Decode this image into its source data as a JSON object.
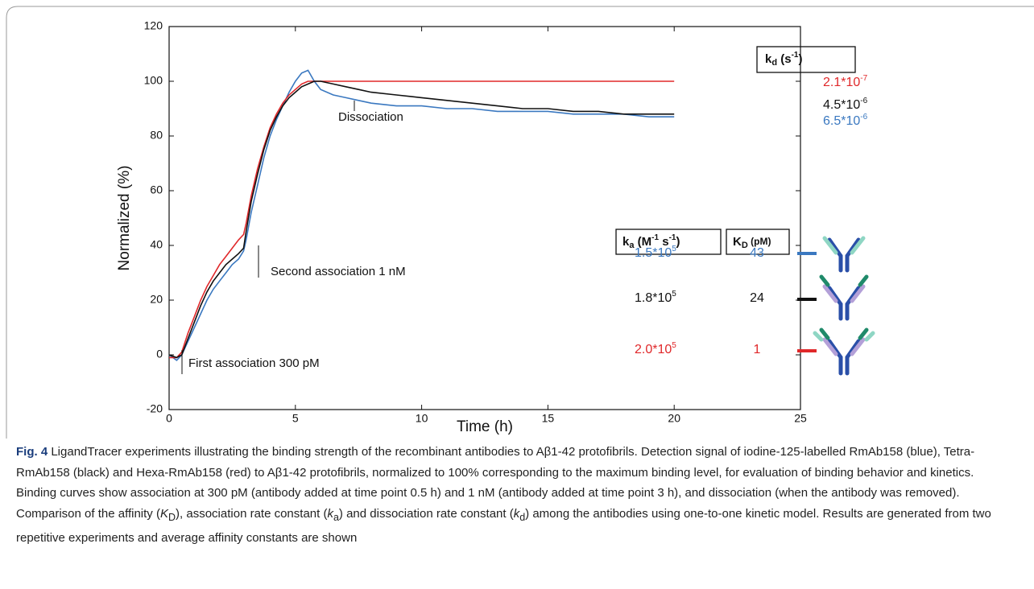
{
  "chart_data": {
    "type": "line",
    "xlabel": "Time (h)",
    "ylabel": "Normalized (%)",
    "xlim": [
      0,
      25
    ],
    "xticks": [
      0,
      5,
      10,
      15,
      20,
      25
    ],
    "ylim": [
      -20,
      120
    ],
    "yticks": [
      -20,
      0,
      20,
      40,
      60,
      80,
      100,
      120
    ],
    "x": [
      0,
      0.3,
      0.5,
      0.75,
      1,
      1.25,
      1.5,
      1.75,
      2,
      2.25,
      2.5,
      2.75,
      2.95,
      3.05,
      3.25,
      3.5,
      3.75,
      4,
      4.25,
      4.5,
      4.75,
      5,
      5.25,
      5.5,
      5.75,
      6,
      6.5,
      7,
      7.5,
      8,
      9,
      10,
      11,
      12,
      13,
      14,
      15,
      16,
      17,
      18,
      19,
      20
    ],
    "series": [
      {
        "color": "#3a78c0",
        "values": [
          0,
          -2,
          0,
          5,
          10,
          15,
          20,
          24,
          27,
          30,
          33,
          35,
          38,
          42,
          52,
          62,
          72,
          80,
          86,
          91,
          96,
          100,
          103,
          104,
          100,
          97,
          95,
          94,
          93,
          92,
          91,
          91,
          90,
          90,
          89,
          89,
          89,
          88,
          88,
          88,
          87,
          87
        ]
      },
      {
        "color": "#e0282a",
        "values": [
          -1,
          -1,
          1,
          8,
          14,
          20,
          25,
          29,
          33,
          36,
          39,
          42,
          44,
          48,
          58,
          68,
          76,
          83,
          88,
          92,
          95,
          97,
          99,
          100,
          100,
          100,
          100,
          100,
          100,
          100,
          100,
          100,
          100,
          100,
          100,
          100,
          100,
          100,
          100,
          100,
          100,
          100
        ]
      },
      {
        "color": "#111111",
        "values": [
          0,
          -1,
          0,
          6,
          12,
          18,
          23,
          27,
          30,
          33,
          35,
          37,
          39,
          45,
          56,
          66,
          75,
          82,
          87,
          91,
          94,
          96,
          98,
          99,
          100,
          100,
          99,
          98,
          97,
          96,
          95,
          94,
          93,
          92,
          91,
          90,
          90,
          89,
          89,
          88,
          88,
          88
        ]
      }
    ],
    "annotations": [
      "Dissociation",
      "Second association 1 nM",
      "First association 300 pM"
    ],
    "kd_header": [
      "k",
      "d",
      " (s",
      "-1",
      ")"
    ],
    "kd_values": [
      [
        "2.1*10",
        "-7"
      ],
      [
        "4.5*10",
        "-6"
      ],
      [
        "6.5*10",
        "-6"
      ]
    ],
    "ka_header": [
      "k",
      "a",
      " (M",
      "-1",
      " s",
      "-1",
      ")"
    ],
    "KD_header": [
      "K",
      "D",
      " (pM)"
    ],
    "rows": [
      {
        "ka": [
          "1.5*10",
          "5"
        ],
        "KD": 43
      },
      {
        "ka": [
          "1.8*10",
          "5"
        ],
        "KD": 24
      },
      {
        "ka": [
          "2.0*10",
          "5"
        ],
        "KD": 1
      }
    ]
  },
  "caption": [
    "Fig. 4",
    "  LigandTracer experiments illustrating the binding strength of the recombinant antibodies to Aβ1-42 protofibrils. Detection signal of iodine-125-labelled  RmAb158 (blue), Tetra-RmAb158 (black) and Hexa-RmAb158 (red) to Aβ1-42 protofibrils, normalized to 100% corresponding to the maximum binding level, for evaluation of binding behavior and kinetics. Binding curves show association at 300 pM (antibody added at time point 0.5 h) and 1 nM (antibody added at time point 3 h), and dissociation (when the antibody was removed). Comparison of the affinity (",
    "K",
    "D",
    "), association rate constant (",
    "k",
    "a",
    ") and dissociation rate constant (",
    "k",
    "d",
    ") among the antibodies using one-to-one kinetic model. Results are generated from two repetitive experiments and average affinity constants are shown"
  ]
}
